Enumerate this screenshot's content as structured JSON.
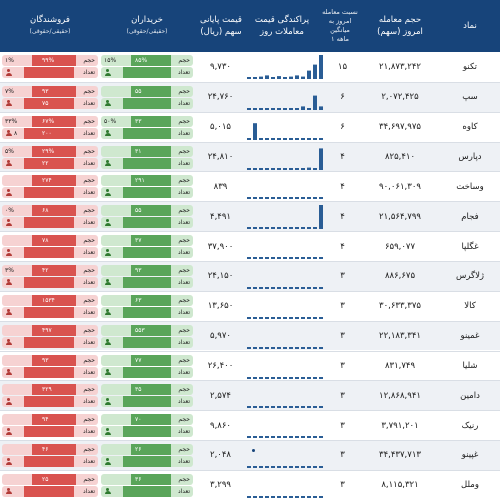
{
  "header": {
    "name": "نماد",
    "volume_line1": "حجم معامله",
    "volume_line2": "امروز (سهم)",
    "ratio_line1": "نسبت معامله",
    "ratio_line2": "امروز به میانگین",
    "ratio_line3": "۱ ماهه",
    "spark_line1": "پراکندگی قیمت",
    "spark_line2": "معاملات روز",
    "price_line1": "قیمت پایانی",
    "price_line2": "سهم (ریال)",
    "buyers_title": "خریداران",
    "buyers_sub": "(حقیقی/حقوقی)",
    "sellers_title": "فروشندگان",
    "sellers_sub": "(حقیقی/حقوقی)"
  },
  "legend": {
    "volume": "حجم",
    "count": "تعداد"
  },
  "colors": {
    "header": "#17447a",
    "buy_light": "#cfe8cf",
    "buy_dark": "#5aa55a",
    "sell_light": "#f6d2d2",
    "sell_dark": "#d9534f",
    "spark": "#2a5d95"
  },
  "rows": [
    {
      "name": "تکنو",
      "volume": "۲۱,۸۷۳,۲۴۲",
      "ratio": "۱۵",
      "price": "۹,۷۳۰",
      "buy": {
        "real_vol": "۸۵%",
        "legal_vol": "۱۵%",
        "real_cnt": "",
        "legal_cnt": ""
      },
      "sell": {
        "real_vol": "۹۹%",
        "legal_vol": "۱%",
        "real_cnt": "",
        "legal_cnt": ""
      },
      "spark": [
        0.05,
        0.0,
        0.1,
        0.15,
        0.08,
        0.12,
        0.06,
        0.1,
        0.15,
        0.1,
        0.35,
        0.6,
        1.0
      ]
    },
    {
      "name": "سپ",
      "volume": "۲,۰۷۲,۴۲۵",
      "ratio": "۶",
      "price": "۲۴,۷۶۰",
      "buy": {
        "real_vol": "۵۵",
        "legal_vol": "",
        "real_cnt": "",
        "legal_cnt": ""
      },
      "sell": {
        "real_vol": "۹۳",
        "legal_vol": "۷%",
        "real_cnt": "۷۵",
        "legal_cnt": ""
      },
      "spark": [
        0.0,
        0.0,
        0.0,
        0.0,
        0.0,
        0.0,
        0.0,
        0.0,
        0.0,
        0.15,
        0.0,
        0.6,
        0.15
      ]
    },
    {
      "name": "کاوه",
      "volume": "۳۴,۶۹۷,۹۷۵",
      "ratio": "۶",
      "price": "۵,۰۱۵",
      "buy": {
        "real_vol": "۳۳",
        "legal_vol": "۵۰%",
        "real_cnt": "",
        "legal_cnt": ""
      },
      "sell": {
        "real_vol": "۶۷%",
        "legal_vol": "۳۳%",
        "real_cnt": "۲۰۰",
        "legal_cnt": "۸"
      },
      "spark": [
        0.0,
        0.7,
        0.0,
        0.0,
        0.0,
        0.0,
        0.0,
        0.0,
        0.0,
        0.0,
        0.0,
        0.0,
        0.0
      ]
    },
    {
      "name": "دپارس",
      "volume": "۸۲۵,۴۱۰",
      "ratio": "۴",
      "price": "۲۴,۸۱۰",
      "buy": {
        "real_vol": "۳۱",
        "legal_vol": "",
        "real_cnt": "",
        "legal_cnt": ""
      },
      "sell": {
        "real_vol": "۲۹%",
        "legal_vol": "۵%",
        "real_cnt": "۲۲",
        "legal_cnt": ""
      },
      "spark": [
        0.0,
        0.0,
        0.0,
        0.0,
        0.0,
        0.0,
        0.0,
        0.0,
        0.0,
        0.0,
        0.1,
        0.0,
        0.9
      ]
    },
    {
      "name": "وساخت",
      "volume": "۹۰,۰۶۱,۳۰۹",
      "ratio": "۴",
      "price": "۸۳۹",
      "buy": {
        "real_vol": "۲۹۱",
        "legal_vol": "",
        "real_cnt": "",
        "legal_cnt": ""
      },
      "sell": {
        "real_vol": "۲۷۴",
        "legal_vol": "",
        "real_cnt": "",
        "legal_cnt": ""
      },
      "spark": [
        0.0,
        0.0,
        0.0,
        0.0,
        0.0,
        0.0,
        0.0,
        0.0,
        0.0,
        0.0,
        0.0,
        0.0,
        0.0
      ]
    },
    {
      "name": "فجام",
      "volume": "۲۱,۵۶۴,۷۹۹",
      "ratio": "۴",
      "price": "۴,۴۹۱",
      "buy": {
        "real_vol": "۵۵",
        "legal_vol": "",
        "real_cnt": "",
        "legal_cnt": ""
      },
      "sell": {
        "real_vol": "۶۸",
        "legal_vol": "۰%",
        "real_cnt": "",
        "legal_cnt": ""
      },
      "spark": [
        0.0,
        0.0,
        0.0,
        0.0,
        0.0,
        0.0,
        0.0,
        0.0,
        0.0,
        0.0,
        0.0,
        0.0,
        1.0
      ]
    },
    {
      "name": "غگلپا",
      "volume": "۶۵۹,۰۷۷",
      "ratio": "۴",
      "price": "۳۷,۹۰۰",
      "buy": {
        "real_vol": "۳۷",
        "legal_vol": "",
        "real_cnt": "",
        "legal_cnt": ""
      },
      "sell": {
        "real_vol": "۷۸",
        "legal_vol": "",
        "real_cnt": "",
        "legal_cnt": ""
      },
      "spark": [
        0.0,
        0.0,
        0.0,
        0.0,
        0.0,
        0.0,
        0.0,
        0.0,
        0.0,
        0.0,
        0.0,
        0.0,
        0.0
      ]
    },
    {
      "name": "ژلاگرس",
      "volume": "۸۸۶,۶۷۵",
      "ratio": "۳",
      "price": "۲۴,۱۵۰",
      "buy": {
        "real_vol": "۹۳",
        "legal_vol": "",
        "real_cnt": "",
        "legal_cnt": ""
      },
      "sell": {
        "real_vol": "۴۲",
        "legal_vol": "۳%",
        "real_cnt": "",
        "legal_cnt": ""
      },
      "spark": [
        0.0,
        0.0,
        0.0,
        0.0,
        0.0,
        0.0,
        0.0,
        0.0,
        0.0,
        0.0,
        0.0,
        0.0,
        0.0
      ]
    },
    {
      "name": "کالا",
      "volume": "۳۰,۶۳۳,۳۷۵",
      "ratio": "۳",
      "price": "۱۳,۶۵۰",
      "buy": {
        "real_vol": "۶۳",
        "legal_vol": "",
        "real_cnt": "",
        "legal_cnt": ""
      },
      "sell": {
        "real_vol": "۱۵۳۴",
        "legal_vol": "",
        "real_cnt": "",
        "legal_cnt": ""
      },
      "spark": [
        0.0,
        0.0,
        0.0,
        0.0,
        0.0,
        0.0,
        0.0,
        0.0,
        0.0,
        0.0,
        0.0,
        0.0,
        0.0
      ]
    },
    {
      "name": "غمینو",
      "volume": "۲۲,۱۸۳,۳۴۱",
      "ratio": "۳",
      "price": "۵,۹۷۰",
      "buy": {
        "real_vol": "۵۵۳",
        "legal_vol": "",
        "real_cnt": "",
        "legal_cnt": ""
      },
      "sell": {
        "real_vol": "۴۹۷",
        "legal_vol": "",
        "real_cnt": "",
        "legal_cnt": ""
      },
      "spark": [
        0.0,
        0.0,
        0.0,
        0.0,
        0.0,
        0.0,
        0.0,
        0.0,
        0.0,
        0.0,
        0.0,
        0.0,
        0.0
      ]
    },
    {
      "name": "شلیا",
      "volume": "۸۳۱,۷۴۹",
      "ratio": "۳",
      "price": "۲۶,۴۰۰",
      "buy": {
        "real_vol": "۷۷",
        "legal_vol": "",
        "real_cnt": "",
        "legal_cnt": ""
      },
      "sell": {
        "real_vol": "۹۳",
        "legal_vol": "",
        "real_cnt": "",
        "legal_cnt": ""
      },
      "spark": [
        0.0,
        0.0,
        0.0,
        0.0,
        0.0,
        0.0,
        0.0,
        0.0,
        0.0,
        0.0,
        0.0,
        0.0,
        0.0
      ]
    },
    {
      "name": "دامین",
      "volume": "۱۲,۸۶۸,۹۴۱",
      "ratio": "۳",
      "price": "۲,۵۷۴",
      "buy": {
        "real_vol": "۳۵",
        "legal_vol": "",
        "real_cnt": "",
        "legal_cnt": ""
      },
      "sell": {
        "real_vol": "۳۲۹",
        "legal_vol": "",
        "real_cnt": "",
        "legal_cnt": ""
      },
      "spark": [
        0.0,
        0.0,
        0.0,
        0.0,
        0.0,
        0.0,
        0.0,
        0.0,
        0.0,
        0.0,
        0.0,
        0.0,
        0.0
      ]
    },
    {
      "name": "رنیک",
      "volume": "۳,۷۹۱,۲۰۱",
      "ratio": "۳",
      "price": "۹,۸۶۰",
      "buy": {
        "real_vol": "۷۰",
        "legal_vol": "",
        "real_cnt": "",
        "legal_cnt": ""
      },
      "sell": {
        "real_vol": "۹۴",
        "legal_vol": "",
        "real_cnt": "",
        "legal_cnt": ""
      },
      "spark": [
        0.0,
        0.0,
        0.0,
        0.0,
        0.0,
        0.0,
        0.0,
        0.0,
        0.0,
        0.0,
        0.0,
        0.0,
        0.0
      ]
    },
    {
      "name": "غپینو",
      "volume": "۳۴,۴۳۷,۷۱۳",
      "ratio": "۳",
      "price": "۲,۰۴۸",
      "buy": {
        "real_vol": "۲۶",
        "legal_vol": "",
        "real_cnt": "",
        "legal_cnt": ""
      },
      "sell": {
        "real_vol": "۴۶",
        "legal_vol": "",
        "real_cnt": "",
        "legal_cnt": ""
      },
      "spark": [
        0.0,
        0.0,
        0.0,
        0.0,
        0.0,
        0.0,
        0.0,
        0.0,
        0.0,
        0.0,
        0.0,
        0.0,
        0.0
      ]
    },
    {
      "name": "وملل",
      "volume": "۸,۱۱۵,۳۲۱",
      "ratio": "۳",
      "price": "۳,۲۹۹",
      "buy": {
        "real_vol": "۳۶",
        "legal_vol": "",
        "real_cnt": "",
        "legal_cnt": ""
      },
      "sell": {
        "real_vol": "۲۵",
        "legal_vol": "",
        "real_cnt": "",
        "legal_cnt": ""
      },
      "spark": [
        0.0,
        0.0,
        0.0,
        0.0,
        0.0,
        0.0,
        0.0,
        0.0,
        0.0,
        0.0,
        0.0,
        0.0,
        0.0
      ]
    }
  ]
}
